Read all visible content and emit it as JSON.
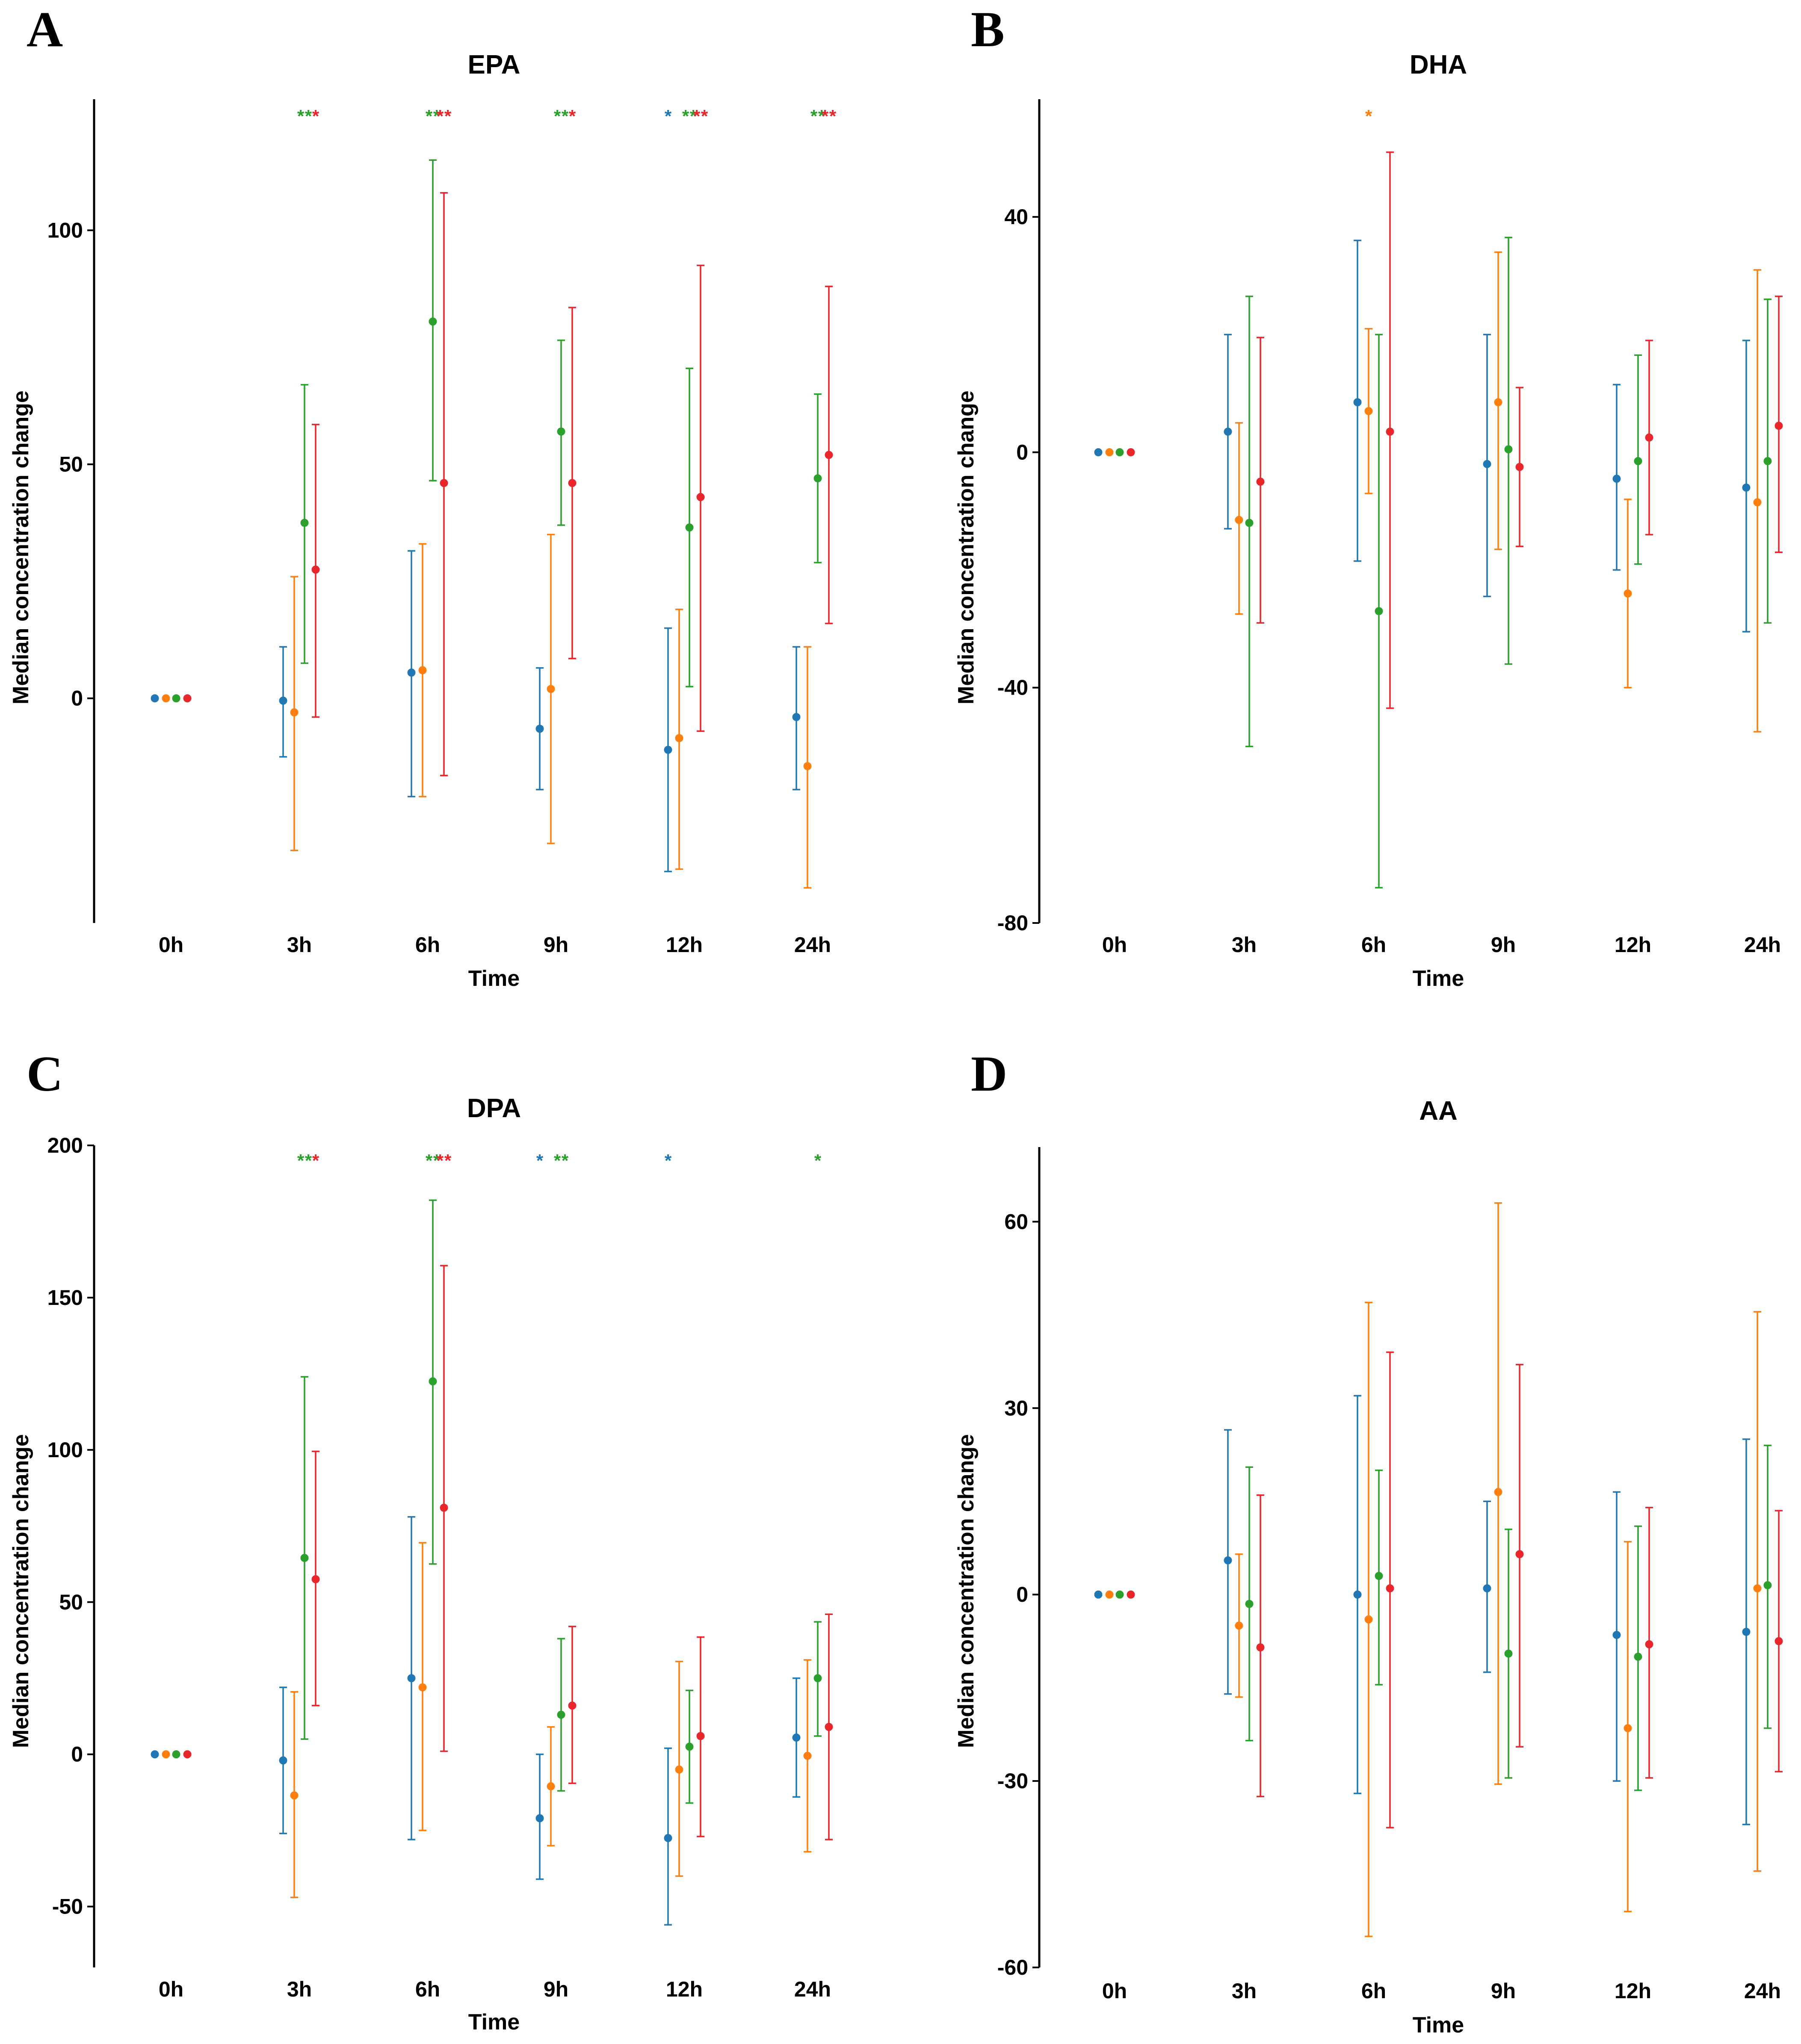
{
  "figure": {
    "series_colors": [
      "#1f77b4",
      "#ff7f0e",
      "#2ca02c",
      "#e8262b"
    ],
    "star_char": "*"
  },
  "chart_data": [
    {
      "panel": "A",
      "type": "scatter",
      "title": "EPA",
      "xlabel": "Time",
      "ylabel": "Median concentration change",
      "categories": [
        "0h",
        "3h",
        "6h",
        "9h",
        "12h",
        "24h"
      ],
      "ylim": [
        -48,
        128
      ],
      "yticks": [
        0,
        50,
        100
      ],
      "ytick_labels": [
        "0",
        "50",
        "100"
      ],
      "series": [
        {
          "color": "#1f77b4",
          "median": [
            0,
            -0.5,
            5.5,
            -6.5,
            -11,
            -4
          ],
          "lower": [
            0,
            -12.5,
            -21,
            -19.5,
            -37,
            -19.5
          ],
          "upper": [
            0,
            11,
            31.5,
            6.5,
            15,
            11
          ],
          "stars": [
            0,
            0,
            0,
            0,
            1,
            0
          ]
        },
        {
          "color": "#ff7f0e",
          "median": [
            0,
            -3,
            6,
            2,
            -8.5,
            -14.5
          ],
          "lower": [
            0,
            -32.5,
            -21,
            -31,
            -36.5,
            -40.5
          ],
          "upper": [
            0,
            26,
            33,
            35,
            19,
            11
          ],
          "stars": [
            0,
            0,
            0,
            0,
            0,
            0
          ]
        },
        {
          "color": "#2ca02c",
          "median": [
            0,
            37.5,
            80.5,
            57,
            36.5,
            47
          ],
          "lower": [
            0,
            7.5,
            46.5,
            37,
            2.5,
            29
          ],
          "upper": [
            0,
            67,
            115,
            76.5,
            70.5,
            65
          ],
          "stars": [
            0,
            2,
            2,
            2,
            2,
            2
          ]
        },
        {
          "color": "#e8262b",
          "median": [
            0,
            27.5,
            46,
            46,
            43,
            52
          ],
          "lower": [
            0,
            -4,
            -16.5,
            8.5,
            -7,
            16
          ],
          "upper": [
            0,
            58.5,
            108,
            83.5,
            92.5,
            88
          ],
          "stars": [
            0,
            1,
            2,
            1,
            2,
            2
          ]
        }
      ]
    },
    {
      "panel": "B",
      "type": "scatter",
      "title": "DHA",
      "xlabel": "Time",
      "ylabel": "Median concentration change",
      "categories": [
        "0h",
        "3h",
        "6h",
        "9h",
        "12h",
        "24h"
      ],
      "ylim": [
        -80,
        60
      ],
      "yticks": [
        -80,
        -40,
        0,
        40
      ],
      "ytick_labels": [
        "-80",
        "-40",
        "0",
        "40"
      ],
      "series": [
        {
          "color": "#1f77b4",
          "median": [
            0,
            3.5,
            8.5,
            -2,
            -4.5,
            -6
          ],
          "lower": [
            0,
            -13,
            -18.5,
            -24.5,
            -20,
            -30.5
          ],
          "upper": [
            0,
            20,
            36,
            20,
            11.5,
            19
          ],
          "stars": [
            0,
            0,
            0,
            0,
            0,
            0
          ]
        },
        {
          "color": "#ff7f0e",
          "median": [
            0,
            -11.5,
            7,
            8.5,
            -24,
            -8.5
          ],
          "lower": [
            0,
            -27.5,
            -7,
            -16.5,
            -40,
            -47.5
          ],
          "upper": [
            0,
            5,
            21,
            34,
            -8,
            31
          ],
          "stars": [
            0,
            0,
            1,
            0,
            0,
            0
          ]
        },
        {
          "color": "#2ca02c",
          "median": [
            0,
            -12,
            -27,
            0.5,
            -1.5,
            -1.5
          ],
          "lower": [
            0,
            -50,
            -74,
            -36,
            -19,
            -29
          ],
          "upper": [
            0,
            26.5,
            20,
            36.5,
            16.5,
            26
          ],
          "stars": [
            0,
            0,
            0,
            0,
            0,
            0
          ]
        },
        {
          "color": "#e8262b",
          "median": [
            0,
            -5,
            3.5,
            -2.5,
            2.5,
            4.5
          ],
          "lower": [
            0,
            -29,
            -43.5,
            -16,
            -14,
            -17
          ],
          "upper": [
            0,
            19.5,
            51,
            11,
            19,
            26.5
          ],
          "stars": [
            0,
            0,
            0,
            0,
            0,
            0
          ]
        }
      ]
    },
    {
      "panel": "C",
      "type": "scatter",
      "title": "DPA",
      "xlabel": "Time",
      "ylabel": "Median concentration change",
      "categories": [
        "0h",
        "3h",
        "6h",
        "9h",
        "12h",
        "24h"
      ],
      "ylim": [
        -70,
        200
      ],
      "yticks": [
        -50,
        0,
        50,
        100,
        150,
        200
      ],
      "ytick_labels": [
        "-50",
        "0",
        "50",
        "100",
        "150",
        "200"
      ],
      "series": [
        {
          "color": "#1f77b4",
          "median": [
            0,
            -2,
            25,
            -21,
            -27.5,
            5.5
          ],
          "lower": [
            0,
            -26,
            -28,
            -41,
            -56,
            -14
          ],
          "upper": [
            0,
            22,
            78,
            0,
            2,
            25
          ],
          "stars": [
            0,
            0,
            0,
            1,
            1,
            0
          ]
        },
        {
          "color": "#ff7f0e",
          "median": [
            0,
            -13.5,
            22,
            -10.5,
            -5,
            -0.5
          ],
          "lower": [
            0,
            -47,
            -25,
            -30,
            -40,
            -32
          ],
          "upper": [
            0,
            20.5,
            69.5,
            9,
            30.5,
            31
          ],
          "stars": [
            0,
            0,
            0,
            0,
            0,
            0
          ]
        },
        {
          "color": "#2ca02c",
          "median": [
            0,
            64.5,
            122.5,
            13,
            2.5,
            25
          ],
          "lower": [
            0,
            5,
            62.5,
            -12,
            -16,
            6
          ],
          "upper": [
            0,
            124,
            182,
            38,
            21,
            43.5
          ],
          "stars": [
            0,
            2,
            2,
            2,
            0,
            1
          ]
        },
        {
          "color": "#e8262b",
          "median": [
            0,
            57.5,
            81,
            16,
            6,
            9
          ],
          "lower": [
            0,
            16,
            1,
            -9.5,
            -27,
            -28
          ],
          "upper": [
            0,
            99.5,
            160.5,
            42,
            38.5,
            46
          ],
          "stars": [
            0,
            1,
            2,
            0,
            0,
            0
          ]
        }
      ]
    },
    {
      "panel": "D",
      "type": "scatter",
      "title": "AA",
      "xlabel": "Time",
      "ylabel": "Median concentration change",
      "categories": [
        "0h",
        "3h",
        "6h",
        "9h",
        "12h",
        "24h"
      ],
      "ylim": [
        -60,
        72
      ],
      "yticks": [
        -60,
        -30,
        0,
        30,
        60
      ],
      "ytick_labels": [
        "-60",
        "-30",
        "0",
        "30",
        "60"
      ],
      "series": [
        {
          "color": "#1f77b4",
          "median": [
            0,
            5.5,
            0,
            1,
            -6.5,
            -6
          ],
          "lower": [
            0,
            -16,
            -32,
            -12.5,
            -30,
            -37
          ],
          "upper": [
            0,
            26.5,
            32,
            15,
            16.5,
            25
          ],
          "stars": [
            0,
            0,
            0,
            0,
            0,
            0
          ]
        },
        {
          "color": "#ff7f0e",
          "median": [
            0,
            -5,
            -4,
            16.5,
            -21.5,
            1
          ],
          "lower": [
            0,
            -16.5,
            -55,
            -30.5,
            -51,
            -44.5
          ],
          "upper": [
            0,
            6.5,
            47,
            63,
            8.5,
            45.5
          ],
          "stars": [
            0,
            0,
            0,
            0,
            0,
            0
          ]
        },
        {
          "color": "#2ca02c",
          "median": [
            0,
            -1.5,
            3,
            -9.5,
            -10,
            1.5
          ],
          "lower": [
            0,
            -23.5,
            -14.5,
            -29.5,
            -31.5,
            -21.5
          ],
          "upper": [
            0,
            20.5,
            20,
            10.5,
            11,
            24
          ],
          "stars": [
            0,
            0,
            0,
            0,
            0,
            0
          ]
        },
        {
          "color": "#e8262b",
          "median": [
            0,
            -8.5,
            1,
            6.5,
            -8,
            -7.5
          ],
          "lower": [
            0,
            -32.5,
            -37.5,
            -24.5,
            -29.5,
            -28.5
          ],
          "upper": [
            0,
            16,
            39,
            37,
            14,
            13.5
          ],
          "stars": [
            0,
            0,
            0,
            0,
            0,
            0
          ]
        }
      ]
    }
  ]
}
